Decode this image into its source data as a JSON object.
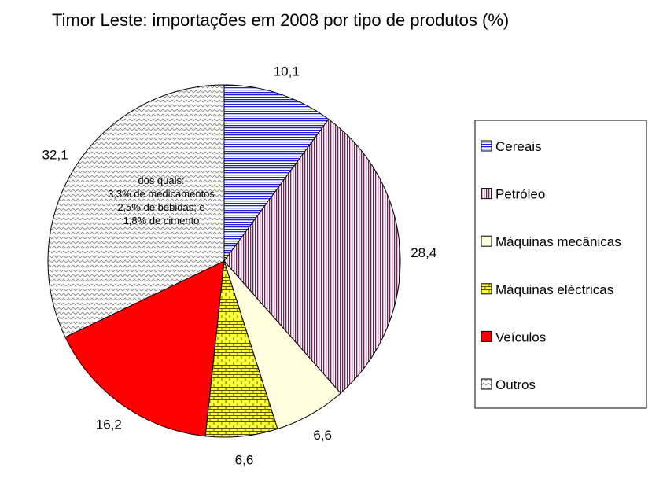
{
  "chart_data": {
    "type": "pie",
    "title": "Timor Leste: importações em 2008 por tipo de produtos (%)",
    "start": "12 o'clock",
    "direction": "clockwise",
    "legend_position": "right",
    "slices": [
      {
        "name": "Cereais",
        "value": 10.1,
        "label": "10,1",
        "color": "#1f1fdc",
        "pattern": "horizontal-lines"
      },
      {
        "name": "Petróleo",
        "value": 28.4,
        "label": "28,4",
        "color": "#7a1f5a",
        "pattern": "vertical-lines"
      },
      {
        "name": "Máquinas mecânicas",
        "value": 6.6,
        "label": "6,6",
        "color": "#ffffe0",
        "pattern": "solid"
      },
      {
        "name": "Máquinas eléctricas",
        "value": 6.6,
        "label": "6,6",
        "color": "#ffff33",
        "pattern": "bricks"
      },
      {
        "name": "Veículos",
        "value": 16.2,
        "label": "16,2",
        "color": "#ff0000",
        "pattern": "solid"
      },
      {
        "name": "Outros",
        "value": 32.1,
        "label": "32,1",
        "color": "#9a9a9a",
        "pattern": "zigzag"
      }
    ],
    "annotation": [
      "dos quais:",
      "3,3% de medicamentos",
      "2,5% de bebidas; e",
      "1,8% de cimento"
    ]
  }
}
